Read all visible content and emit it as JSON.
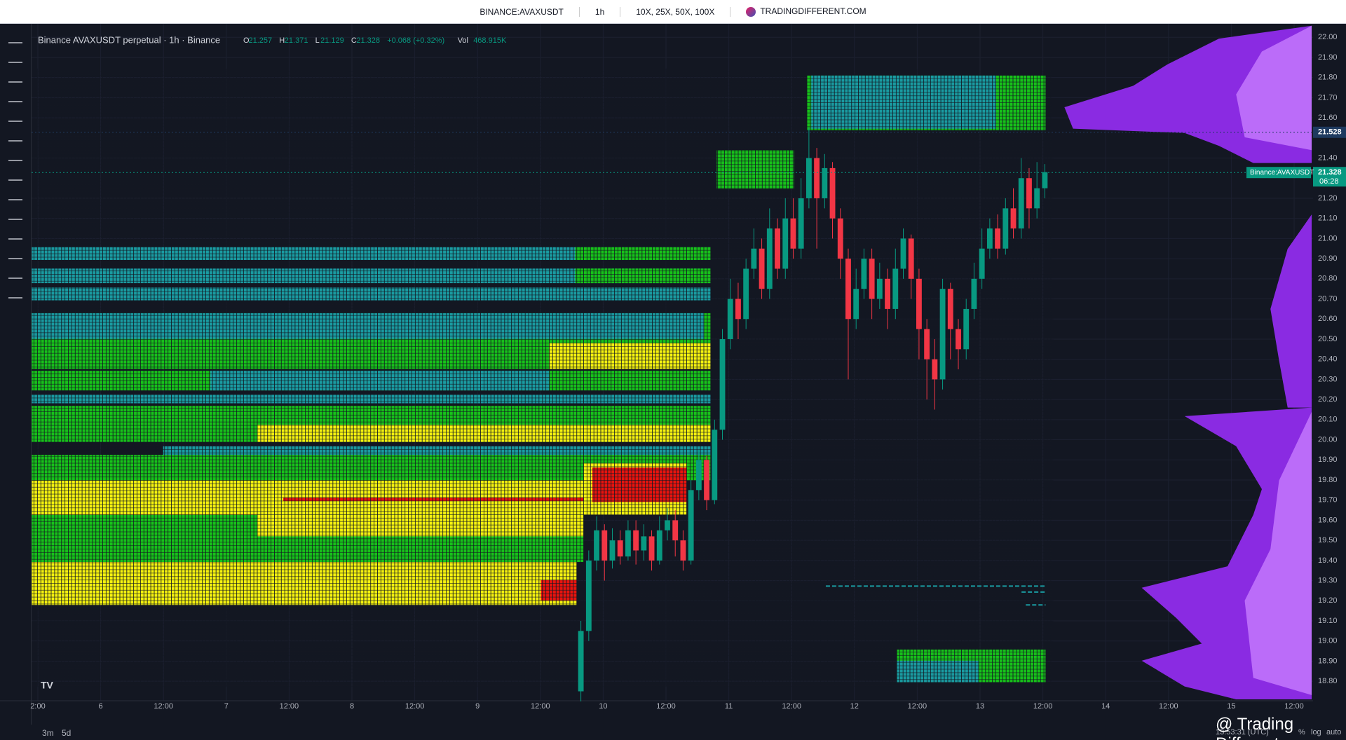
{
  "header": {
    "symbol": "BINANCE:AVAXUSDT",
    "interval": "1h",
    "leverage": "10X, 25X, 50X, 100X",
    "site": "TRADINGDIFFERENT.COM"
  },
  "legend": {
    "title": "Binance AVAXUSDT perpetual · 1h · Binance",
    "items": [
      [
        "O",
        "21.257"
      ],
      [
        "H",
        "21.371"
      ],
      [
        "L",
        "21.129"
      ],
      [
        "C",
        "21.328"
      ],
      [
        "",
        "+0.068 (+0.32%)"
      ],
      [
        "Vol",
        "468.915K"
      ]
    ]
  },
  "footer": {
    "ranges": [
      "3m",
      "5d"
    ],
    "clock": "13:53:31 (UTC)",
    "toggles": [
      "%",
      "log",
      "auto"
    ],
    "watermark": "@ Trading Different"
  },
  "chart_data": {
    "type": "candlestick",
    "x_labels": [
      "2:00",
      "6",
      "12:00",
      "7",
      "12:00",
      "8",
      "12:00",
      "9",
      "12:00",
      "10",
      "12:00",
      "11",
      "12:00",
      "12",
      "12:00",
      "13",
      "12:00",
      "14",
      "12:00",
      "15",
      "12:00"
    ],
    "ylim": [
      18.71,
      22.06
    ],
    "yticks": [
      {
        "value": 18.8,
        "label": "18.80"
      },
      {
        "value": 18.9,
        "label": "18.90"
      },
      {
        "value": 19.0,
        "label": "19.00"
      },
      {
        "value": 19.1,
        "label": "19.10"
      },
      {
        "value": 19.2,
        "label": "19.20"
      },
      {
        "value": 19.3,
        "label": "19.30"
      },
      {
        "value": 19.4,
        "label": "19.40"
      },
      {
        "value": 19.5,
        "label": "19.50"
      },
      {
        "value": 19.6,
        "label": "19.60"
      },
      {
        "value": 19.7,
        "label": "19.70"
      },
      {
        "value": 19.8,
        "label": "19.80"
      },
      {
        "value": 19.9,
        "label": "19.90"
      },
      {
        "value": 20.0,
        "label": "20.00"
      },
      {
        "value": 20.1,
        "label": "20.10"
      },
      {
        "value": 20.2,
        "label": "20.20"
      },
      {
        "value": 20.3,
        "label": "20.30"
      },
      {
        "value": 20.4,
        "label": "20.40"
      },
      {
        "value": 20.5,
        "label": "20.50"
      },
      {
        "value": 20.6,
        "label": "20.60"
      },
      {
        "value": 20.7,
        "label": "20.70"
      },
      {
        "value": 20.8,
        "label": "20.80"
      },
      {
        "value": 20.9,
        "label": "20.90"
      },
      {
        "value": 21.0,
        "label": "21.00"
      },
      {
        "value": 21.1,
        "label": "21.10"
      },
      {
        "value": 21.2,
        "label": "21.20"
      },
      {
        "value": 21.4,
        "label": "21.40"
      },
      {
        "value": 21.6,
        "label": "21.60"
      },
      {
        "value": 21.7,
        "label": "21.70"
      },
      {
        "value": 21.8,
        "label": "21.80"
      },
      {
        "value": 21.9,
        "label": "21.90"
      },
      {
        "value": 22.0,
        "label": "22.00"
      }
    ],
    "price_labels": [
      {
        "value": 21.528,
        "label": "21.528",
        "color": "#1e3a5f"
      },
      {
        "value": 21.328,
        "label": "21.328",
        "color": "#089981",
        "sub": "06:28",
        "name": "Binance:AVAXUSDT"
      }
    ],
    "up_color": "#089981",
    "down_color": "#f23645",
    "open": [
      18.75,
      19.05,
      19.4,
      19.55,
      19.4,
      19.5,
      19.42,
      19.55,
      19.45,
      19.52,
      19.4,
      19.55,
      19.6,
      19.5,
      19.4,
      19.75,
      19.9,
      19.7,
      20.05,
      20.5,
      20.7,
      20.6,
      20.85,
      20.95,
      20.75,
      21.05,
      20.85,
      21.1,
      20.95,
      21.2,
      21.4,
      21.2,
      21.35,
      21.1,
      20.9,
      20.6,
      20.75,
      20.9,
      20.7,
      20.8,
      20.65,
      20.85,
      21.0,
      20.8,
      20.55,
      20.4,
      20.3,
      20.75,
      20.55,
      20.45,
      20.65,
      20.8,
      20.95,
      21.05,
      20.95,
      21.15,
      21.05,
      21.3,
      21.15,
      21.25
    ],
    "high": [
      19.1,
      19.45,
      19.62,
      19.58,
      19.56,
      19.55,
      19.6,
      19.6,
      19.58,
      19.55,
      19.62,
      19.66,
      19.65,
      19.55,
      19.8,
      19.95,
      19.92,
      20.1,
      20.55,
      20.8,
      20.78,
      20.9,
      21.05,
      21.0,
      21.15,
      21.1,
      21.2,
      21.2,
      21.3,
      21.55,
      21.45,
      21.42,
      21.38,
      21.15,
      20.95,
      20.85,
      20.95,
      20.95,
      20.88,
      20.85,
      20.95,
      21.05,
      21.02,
      20.85,
      20.6,
      20.5,
      20.8,
      20.78,
      20.6,
      20.7,
      20.88,
      21.05,
      21.1,
      21.12,
      21.2,
      21.25,
      21.4,
      21.35,
      21.38,
      21.37
    ],
    "low": [
      18.7,
      19.0,
      19.35,
      19.3,
      19.36,
      19.38,
      19.4,
      19.38,
      19.4,
      19.35,
      19.38,
      19.5,
      19.42,
      19.35,
      19.38,
      19.7,
      19.65,
      19.68,
      20.0,
      20.45,
      20.5,
      20.55,
      20.8,
      20.7,
      20.7,
      20.8,
      20.8,
      20.9,
      20.9,
      21.15,
      20.95,
      21.15,
      21.0,
      20.8,
      20.3,
      20.55,
      20.7,
      20.6,
      20.65,
      20.55,
      20.6,
      20.8,
      20.7,
      20.4,
      20.2,
      20.15,
      20.25,
      20.4,
      20.35,
      20.4,
      20.6,
      20.75,
      20.9,
      20.9,
      20.92,
      21.0,
      21.0,
      21.05,
      21.1,
      21.2
    ],
    "close": [
      19.05,
      19.4,
      19.55,
      19.4,
      19.5,
      19.42,
      19.55,
      19.45,
      19.52,
      19.4,
      19.55,
      19.6,
      19.5,
      19.4,
      19.75,
      19.9,
      19.7,
      20.05,
      20.5,
      20.7,
      20.6,
      20.85,
      20.95,
      20.75,
      21.05,
      20.85,
      21.1,
      20.95,
      21.2,
      21.4,
      21.2,
      21.35,
      21.1,
      20.9,
      20.6,
      20.75,
      20.9,
      20.7,
      20.8,
      20.65,
      20.85,
      21.0,
      20.8,
      20.55,
      20.4,
      20.3,
      20.75,
      20.55,
      20.45,
      20.65,
      20.8,
      20.95,
      21.05,
      20.95,
      21.15,
      21.05,
      21.3,
      21.15,
      21.25,
      21.33
    ]
  }
}
